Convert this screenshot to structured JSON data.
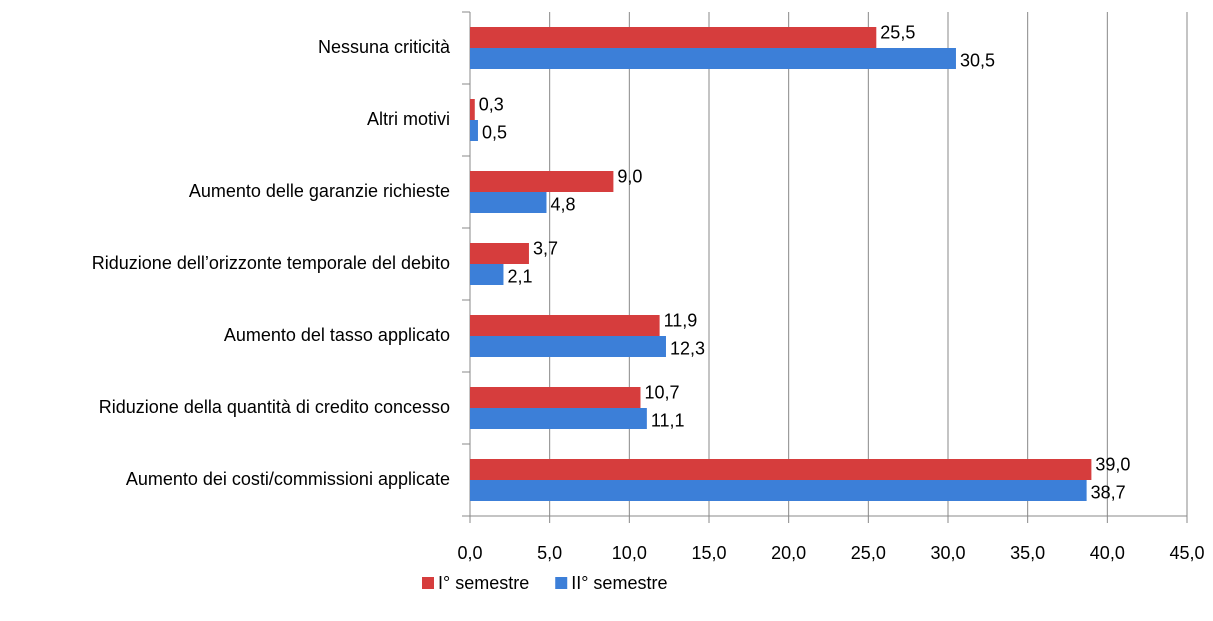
{
  "chart_data": {
    "type": "hbar",
    "categories": [
      "Nessuna criticità",
      "Altri motivi",
      "Aumento delle garanzie richieste",
      "Riduzione dell’orizzonte temporale del debito",
      "Aumento del tasso applicato",
      "Riduzione della quantità di credito concesso",
      "Aumento dei costi/commissioni applicate"
    ],
    "series": [
      {
        "name": "I° semestre",
        "color": "#d63d3d",
        "values": [
          25.5,
          0.3,
          9.0,
          3.7,
          11.9,
          10.7,
          39.0
        ],
        "value_labels": [
          "25,5",
          "0,3",
          "9,0",
          "3,7",
          "11,9",
          "10,7",
          "39,0"
        ]
      },
      {
        "name": "II° semestre",
        "color": "#3c7fd8",
        "values": [
          30.5,
          0.5,
          4.8,
          2.1,
          12.3,
          11.1,
          38.7
        ],
        "value_labels": [
          "30,5",
          "0,5",
          "4,8",
          "2,1",
          "12,3",
          "11,1",
          "38,7"
        ]
      }
    ],
    "xlim": [
      0,
      45
    ],
    "xticks": [
      {
        "value": 0,
        "label": "0,0"
      },
      {
        "value": 5,
        "label": "5,0"
      },
      {
        "value": 10,
        "label": "10,0"
      },
      {
        "value": 15,
        "label": "15,0"
      },
      {
        "value": 20,
        "label": "20,0"
      },
      {
        "value": 25,
        "label": "25,0"
      },
      {
        "value": 30,
        "label": "30,0"
      },
      {
        "value": 35,
        "label": "35,0"
      },
      {
        "value": 40,
        "label": "40,0"
      },
      {
        "value": 45,
        "label": "45,0"
      }
    ],
    "grid": true,
    "legend": "bottom"
  }
}
